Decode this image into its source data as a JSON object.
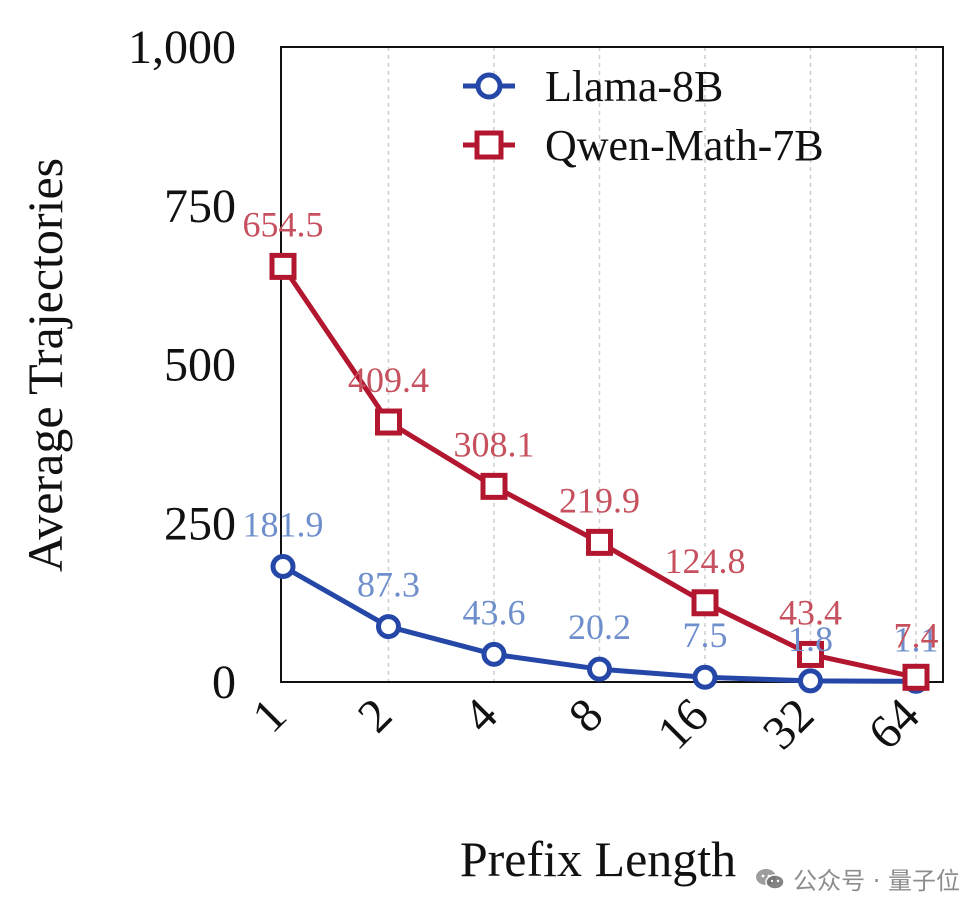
{
  "chart_data": {
    "type": "line",
    "categories": [
      "1",
      "2",
      "4",
      "8",
      "16",
      "32",
      "64"
    ],
    "xlabel": "Prefix Length",
    "ylabel": "Average Trajectories",
    "ylim": [
      0,
      1000
    ],
    "yticks": [
      0,
      250,
      500,
      750,
      1000
    ],
    "ytick_labels": [
      "0",
      "250",
      "500",
      "750",
      "1,000"
    ],
    "grid": "vertical-dashed",
    "legend_position": "top-right",
    "series": [
      {
        "name": "Llama-8B",
        "marker": "circle",
        "color": "#2447a8",
        "label_color": "#6f8fcc",
        "values": [
          181.9,
          87.3,
          43.6,
          20.2,
          7.5,
          1.8,
          1.1
        ],
        "labels": [
          "181.9",
          "87.3",
          "43.6",
          "20.2",
          "7.5",
          "1.8",
          "1.1"
        ]
      },
      {
        "name": "Qwen-Math-7B",
        "marker": "square",
        "color": "#b3162f",
        "label_color": "#c6505d",
        "values": [
          654.5,
          409.4,
          308.1,
          219.9,
          124.8,
          43.4,
          7.4
        ],
        "labels": [
          "654.5",
          "409.4",
          "308.1",
          "219.9",
          "124.8",
          "43.4",
          "7.4"
        ]
      }
    ]
  },
  "watermark": {
    "text": "公众号 · 量子位",
    "icon": "wechat-icon"
  }
}
